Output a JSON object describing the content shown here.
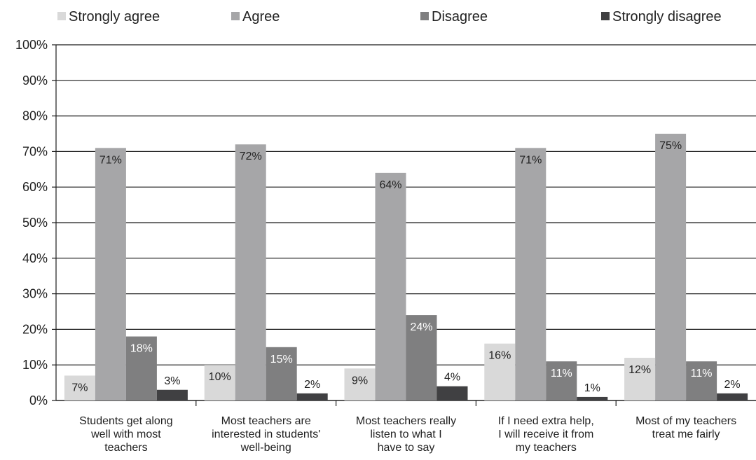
{
  "chart_data": {
    "type": "bar",
    "title": "",
    "xlabel": "",
    "ylabel": "",
    "ylim": [
      0,
      100
    ],
    "yticks": [
      0,
      10,
      20,
      30,
      40,
      50,
      60,
      70,
      80,
      90,
      100
    ],
    "ytick_labels": [
      "0%",
      "10%",
      "20%",
      "30%",
      "40%",
      "50%",
      "60%",
      "70%",
      "80%",
      "90%",
      "100%"
    ],
    "grid": true,
    "legend_position": "top",
    "categories": [
      [
        "Students get along",
        "well with most",
        "teachers"
      ],
      [
        "Most teachers are",
        "interested in students'",
        "well-being"
      ],
      [
        "Most teachers really",
        "listen to what I",
        "have to say"
      ],
      [
        "If I need extra help,",
        "I will receive it from",
        "my teachers"
      ],
      [
        "Most of my teachers",
        "treat me fairly"
      ]
    ],
    "series": [
      {
        "name": "Strongly agree",
        "color": "#d9d9d9",
        "label_color": "#222222",
        "values": [
          7,
          10,
          9,
          16,
          12
        ],
        "labels": [
          "7%",
          "10%",
          "9%",
          "16%",
          "12%"
        ]
      },
      {
        "name": "Agree",
        "color": "#a6a6a8",
        "label_color": "#222222",
        "values": [
          71,
          72,
          64,
          71,
          75
        ],
        "labels": [
          "71%",
          "72%",
          "64%",
          "71%",
          "75%"
        ]
      },
      {
        "name": "Disagree",
        "color": "#7f7f80",
        "label_color": "#ffffff",
        "values": [
          18,
          15,
          24,
          11,
          11
        ],
        "labels": [
          "18%",
          "15%",
          "24%",
          "11%",
          "11%"
        ]
      },
      {
        "name": "Strongly disagree",
        "color": "#404042",
        "label_color": "#222222",
        "values": [
          3,
          2,
          4,
          1,
          2
        ],
        "labels": [
          "3%",
          "2%",
          "4%",
          "1%",
          "2%"
        ]
      }
    ]
  }
}
